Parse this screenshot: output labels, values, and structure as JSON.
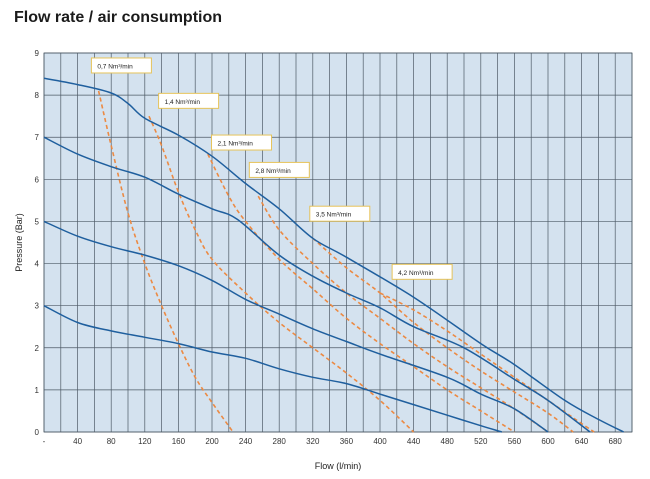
{
  "page": {
    "title": "Flow rate / air consumption"
  },
  "colors": {
    "plot_bg": "#d4e2ef",
    "grid": "#4d5a66",
    "pump_curve": "#1f5f9e",
    "air_curve": "#ec8a43",
    "annotation_border": "#e6c35a"
  },
  "chart_data": {
    "type": "line",
    "title": "Flow rate / air consumption",
    "xlabel": "Flow (l/min)",
    "ylabel": "Pressure (Bar)",
    "xlim": [
      0,
      700
    ],
    "ylim": [
      0,
      9
    ],
    "x_ticks": [
      {
        "v": 0,
        "label": "-"
      },
      {
        "v": 40,
        "label": "40"
      },
      {
        "v": 80,
        "label": "80"
      },
      {
        "v": 120,
        "label": "120"
      },
      {
        "v": 160,
        "label": "160"
      },
      {
        "v": 200,
        "label": "200"
      },
      {
        "v": 240,
        "label": "240"
      },
      {
        "v": 280,
        "label": "280"
      },
      {
        "v": 320,
        "label": "320"
      },
      {
        "v": 360,
        "label": "360"
      },
      {
        "v": 400,
        "label": "400"
      },
      {
        "v": 440,
        "label": "440"
      },
      {
        "v": 480,
        "label": "480"
      },
      {
        "v": 520,
        "label": "520"
      },
      {
        "v": 560,
        "label": "560"
      },
      {
        "v": 600,
        "label": "600"
      },
      {
        "v": 640,
        "label": "640"
      },
      {
        "v": 680,
        "label": "680"
      }
    ],
    "y_ticks": [
      0,
      1,
      2,
      3,
      4,
      5,
      6,
      7,
      8,
      9
    ],
    "grid": true,
    "grid_step_x": 20,
    "pump_curves": [
      {
        "points": [
          [
            0,
            8.4
          ],
          [
            40,
            8.25
          ],
          [
            80,
            8.05
          ],
          [
            100,
            7.8
          ],
          [
            120,
            7.45
          ],
          [
            160,
            7.05
          ],
          [
            200,
            6.55
          ],
          [
            240,
            5.9
          ],
          [
            280,
            5.3
          ],
          [
            320,
            4.6
          ],
          [
            360,
            4.15
          ],
          [
            440,
            3.2
          ],
          [
            520,
            2.1
          ],
          [
            560,
            1.6
          ],
          [
            620,
            0.75
          ],
          [
            660,
            0.3
          ],
          [
            690,
            0
          ]
        ]
      },
      {
        "points": [
          [
            0,
            7.0
          ],
          [
            40,
            6.6
          ],
          [
            80,
            6.3
          ],
          [
            120,
            6.05
          ],
          [
            160,
            5.65
          ],
          [
            200,
            5.3
          ],
          [
            230,
            5.05
          ],
          [
            280,
            4.2
          ],
          [
            320,
            3.7
          ],
          [
            360,
            3.3
          ],
          [
            400,
            2.95
          ],
          [
            440,
            2.5
          ],
          [
            500,
            2.0
          ],
          [
            560,
            1.25
          ],
          [
            600,
            0.75
          ],
          [
            650,
            0
          ]
        ]
      },
      {
        "points": [
          [
            0,
            5.0
          ],
          [
            40,
            4.65
          ],
          [
            80,
            4.4
          ],
          [
            120,
            4.2
          ],
          [
            160,
            3.95
          ],
          [
            200,
            3.6
          ],
          [
            240,
            3.15
          ],
          [
            280,
            2.8
          ],
          [
            320,
            2.45
          ],
          [
            360,
            2.15
          ],
          [
            400,
            1.85
          ],
          [
            480,
            1.3
          ],
          [
            520,
            0.9
          ],
          [
            560,
            0.55
          ],
          [
            600,
            0
          ]
        ]
      },
      {
        "points": [
          [
            0,
            3.0
          ],
          [
            40,
            2.6
          ],
          [
            80,
            2.4
          ],
          [
            120,
            2.25
          ],
          [
            160,
            2.1
          ],
          [
            200,
            1.9
          ],
          [
            240,
            1.75
          ],
          [
            280,
            1.5
          ],
          [
            320,
            1.3
          ],
          [
            360,
            1.15
          ],
          [
            400,
            0.9
          ],
          [
            440,
            0.65
          ],
          [
            480,
            0.4
          ],
          [
            520,
            0.15
          ],
          [
            545,
            0
          ]
        ]
      }
    ],
    "air_curves": [
      {
        "label": "0,7 Nm³/min",
        "points": [
          [
            65,
            8.1
          ],
          [
            80,
            6.8
          ],
          [
            100,
            5.2
          ],
          [
            120,
            4.0
          ],
          [
            140,
            3.0
          ],
          [
            160,
            2.1
          ],
          [
            180,
            1.3
          ],
          [
            200,
            0.7
          ],
          [
            225,
            0
          ]
        ]
      },
      {
        "label": "1,4 Nm³/min",
        "points": [
          [
            125,
            7.5
          ],
          [
            140,
            6.8
          ],
          [
            160,
            5.7
          ],
          [
            180,
            4.8
          ],
          [
            200,
            4.1
          ],
          [
            240,
            3.3
          ],
          [
            280,
            2.6
          ],
          [
            320,
            2.0
          ],
          [
            360,
            1.4
          ],
          [
            400,
            0.75
          ],
          [
            440,
            0
          ]
        ]
      },
      {
        "label": "2,1 Nm³/min",
        "points": [
          [
            195,
            6.6
          ],
          [
            220,
            5.6
          ],
          [
            240,
            5.0
          ],
          [
            280,
            4.1
          ],
          [
            320,
            3.4
          ],
          [
            360,
            2.7
          ],
          [
            400,
            2.1
          ],
          [
            440,
            1.55
          ],
          [
            480,
            1.0
          ],
          [
            520,
            0.5
          ],
          [
            560,
            0
          ]
        ]
      },
      {
        "label": "2,8 Nm³/min",
        "points": [
          [
            255,
            5.6
          ],
          [
            280,
            4.8
          ],
          [
            320,
            4.0
          ],
          [
            360,
            3.3
          ],
          [
            400,
            2.7
          ],
          [
            440,
            2.1
          ],
          [
            480,
            1.55
          ],
          [
            520,
            1.05
          ],
          [
            560,
            0.55
          ],
          [
            600,
            0
          ]
        ]
      },
      {
        "label": "3,5 Nm³/min",
        "points": [
          [
            320,
            4.6
          ],
          [
            360,
            3.9
          ],
          [
            400,
            3.3
          ],
          [
            440,
            2.6
          ],
          [
            480,
            2.0
          ],
          [
            520,
            1.45
          ],
          [
            560,
            0.95
          ],
          [
            600,
            0.45
          ],
          [
            630,
            0
          ]
        ]
      },
      {
        "label": "4,2 Nm³/min",
        "points": [
          [
            400,
            3.3
          ],
          [
            440,
            2.9
          ],
          [
            480,
            2.4
          ],
          [
            520,
            1.85
          ],
          [
            560,
            1.3
          ],
          [
            600,
            0.75
          ],
          [
            640,
            0.2
          ],
          [
            655,
            0
          ]
        ]
      }
    ],
    "annotations": [
      {
        "text": "0,7 Nm³/min",
        "x": 60,
        "y": 8.68
      },
      {
        "text": "1,4 Nm³/min",
        "x": 140,
        "y": 7.84
      },
      {
        "text": "2,1 Nm³/min",
        "x": 203,
        "y": 6.85
      },
      {
        "text": "2,8 Nm³/min",
        "x": 248,
        "y": 6.2
      },
      {
        "text": "3,5 Nm³/min",
        "x": 320,
        "y": 5.16
      },
      {
        "text": "4,2 Nm³/min",
        "x": 418,
        "y": 3.78
      }
    ]
  }
}
